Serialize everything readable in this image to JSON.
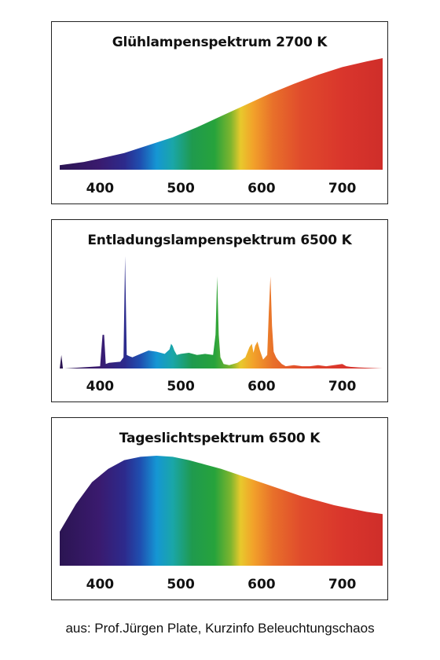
{
  "figure": {
    "credit": "aus: Prof.Jürgen Plate, Kurzinfo Beleuchtungschaos"
  },
  "chart_data": [
    {
      "type": "area",
      "title": "Glühlampenspektrum 2700 K",
      "xlabel": "",
      "ylabel": "",
      "xlim": [
        350,
        750
      ],
      "xticks": [
        400,
        500,
        600,
        700
      ],
      "fill": "visible-spectrum gradient",
      "x": [
        350,
        380,
        400,
        430,
        460,
        490,
        520,
        550,
        580,
        610,
        640,
        670,
        700,
        730,
        750
      ],
      "y": [
        0.04,
        0.07,
        0.1,
        0.15,
        0.22,
        0.29,
        0.38,
        0.48,
        0.58,
        0.68,
        0.77,
        0.85,
        0.92,
        0.97,
        1.0
      ]
    },
    {
      "type": "area",
      "title": "Entladungslampenspektrum 6500 K",
      "xlabel": "",
      "ylabel": "",
      "xlim": [
        350,
        750
      ],
      "xticks": [
        400,
        500,
        600,
        700
      ],
      "fill": "visible-spectrum gradient",
      "x": [
        350,
        352,
        354,
        356,
        400,
        403,
        405,
        407,
        411,
        425,
        429,
        431,
        433,
        436,
        440,
        450,
        460,
        470,
        480,
        486,
        488,
        490,
        492,
        495,
        500,
        510,
        520,
        530,
        540,
        543,
        545,
        547,
        549,
        553,
        560,
        570,
        580,
        585,
        588,
        590,
        592,
        595,
        598,
        602,
        607,
        609,
        611,
        613,
        615,
        618,
        620,
        625,
        630,
        640,
        650,
        660,
        670,
        680,
        700,
        705,
        710,
        720,
        750
      ],
      "y": [
        0.0,
        0.12,
        0.0,
        0.0,
        0.02,
        0.3,
        0.3,
        0.04,
        0.05,
        0.06,
        0.1,
        1.0,
        0.12,
        0.11,
        0.1,
        0.13,
        0.16,
        0.15,
        0.13,
        0.17,
        0.22,
        0.2,
        0.16,
        0.12,
        0.13,
        0.14,
        0.12,
        0.13,
        0.12,
        0.3,
        0.82,
        0.3,
        0.1,
        0.04,
        0.03,
        0.05,
        0.1,
        0.19,
        0.22,
        0.14,
        0.2,
        0.24,
        0.16,
        0.08,
        0.12,
        0.5,
        0.82,
        0.38,
        0.15,
        0.1,
        0.08,
        0.04,
        0.02,
        0.03,
        0.02,
        0.02,
        0.03,
        0.02,
        0.04,
        0.02,
        0.015,
        0.01,
        0.0
      ]
    },
    {
      "type": "area",
      "title": "Tageslichtspektrum 6500 K",
      "xlabel": "",
      "ylabel": "",
      "xlim": [
        350,
        750
      ],
      "xticks": [
        400,
        500,
        600,
        700
      ],
      "fill": "visible-spectrum gradient",
      "x": [
        350,
        370,
        390,
        410,
        430,
        450,
        470,
        490,
        510,
        530,
        550,
        570,
        590,
        610,
        630,
        650,
        670,
        690,
        710,
        730,
        750
      ],
      "y": [
        0.31,
        0.56,
        0.76,
        0.88,
        0.96,
        0.99,
        1.0,
        0.99,
        0.96,
        0.92,
        0.88,
        0.83,
        0.78,
        0.73,
        0.68,
        0.63,
        0.59,
        0.55,
        0.52,
        0.49,
        0.47
      ]
    }
  ]
}
